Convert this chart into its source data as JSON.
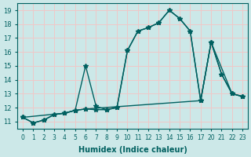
{
  "xlabel": "Humidex (Indice chaleur)",
  "bg_color": "#cce8e8",
  "grid_color": "#f0c8c8",
  "line_color": "#006060",
  "ylim": [
    10.5,
    19.5
  ],
  "yticks": [
    11,
    12,
    13,
    14,
    15,
    16,
    17,
    18,
    19
  ],
  "xtick_labels": [
    "0",
    "1",
    "2",
    "3",
    "4",
    "5",
    "6",
    "7",
    "8",
    "9",
    "10",
    "11",
    "12",
    "13",
    "14",
    "15",
    "16",
    "17",
    "20",
    "21",
    "22",
    "23"
  ],
  "line1_x": [
    0,
    1,
    2,
    3,
    4,
    5,
    6,
    7,
    8,
    9,
    10,
    11,
    12,
    13,
    14,
    15,
    16,
    17,
    18,
    19,
    20,
    21
  ],
  "line1_y": [
    11.3,
    10.9,
    11.1,
    11.5,
    11.6,
    11.8,
    15.0,
    12.1,
    11.85,
    12.0,
    16.1,
    17.5,
    17.75,
    18.1,
    19.0,
    18.4,
    17.5,
    12.5,
    16.7,
    14.4,
    13.0,
    12.8
  ],
  "line2_x": [
    0,
    1,
    2,
    3,
    4,
    5,
    6,
    7,
    8,
    9,
    10,
    11,
    12,
    13,
    14,
    15,
    16,
    17,
    18,
    19,
    20,
    21
  ],
  "line2_y": [
    11.3,
    10.9,
    11.1,
    11.5,
    11.6,
    11.8,
    11.9,
    11.85,
    11.85,
    12.0,
    16.1,
    17.5,
    17.75,
    18.1,
    19.0,
    18.4,
    17.5,
    12.5,
    16.7,
    14.4,
    13.0,
    12.8
  ],
  "line3_x": [
    0,
    4,
    5,
    6,
    17,
    18,
    20,
    21
  ],
  "line3_y": [
    11.3,
    11.6,
    11.8,
    11.9,
    12.5,
    16.7,
    13.0,
    12.8
  ],
  "marker": "*",
  "markersize": 4,
  "linewidth": 1.0
}
